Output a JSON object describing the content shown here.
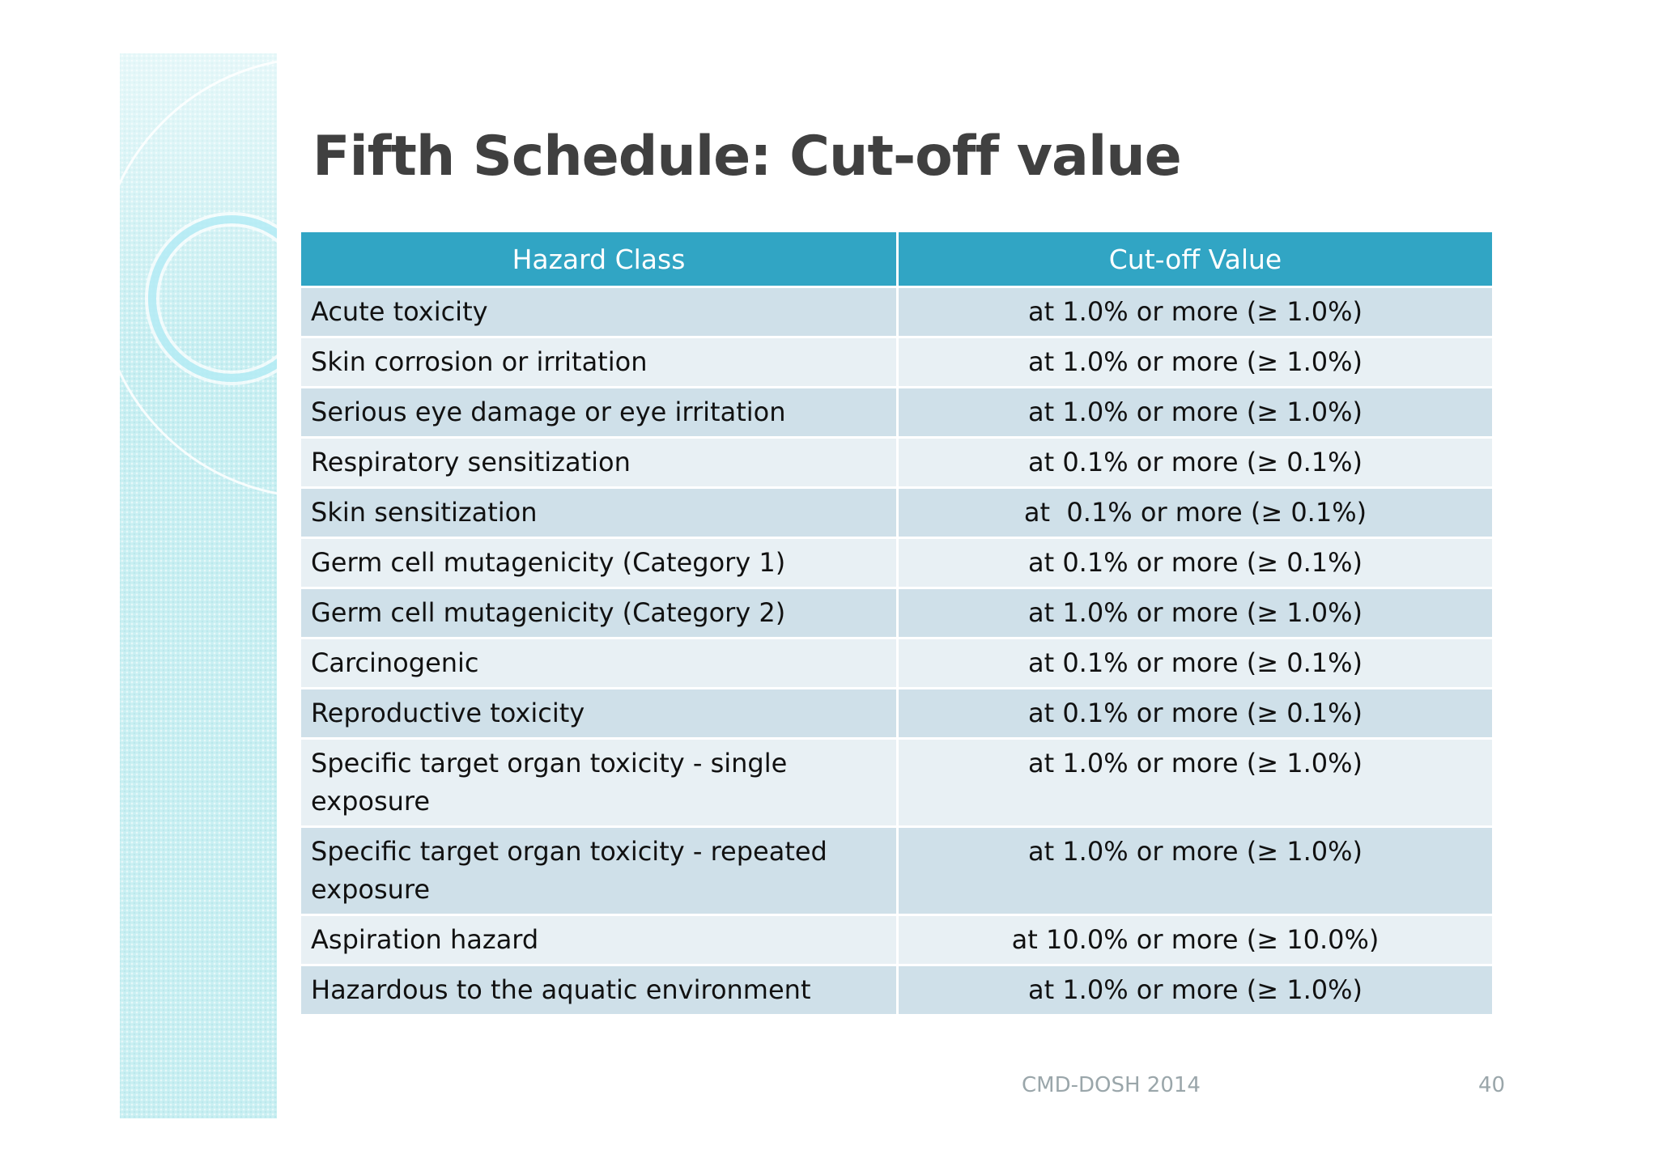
{
  "slide": {
    "title": "Fifth Schedule: Cut-off value"
  },
  "table": {
    "headers": [
      "Hazard Class",
      "Cut-off Value"
    ],
    "rows": [
      {
        "hazard": "Acute toxicity",
        "cutoff": "at 1.0% or more (≥ 1.0%)"
      },
      {
        "hazard": "Skin corrosion or irritation",
        "cutoff": "at 1.0% or more (≥ 1.0%)"
      },
      {
        "hazard": "Serious eye damage or eye irritation",
        "cutoff": "at 1.0% or more (≥ 1.0%)"
      },
      {
        "hazard": "Respiratory sensitization",
        "cutoff": "at 0.1% or more (≥ 0.1%)"
      },
      {
        "hazard": "Skin sensitization",
        "cutoff": "at  0.1% or more (≥ 0.1%)"
      },
      {
        "hazard": "Germ cell mutagenicity (Category 1)",
        "cutoff": "at 0.1% or more (≥ 0.1%)"
      },
      {
        "hazard": "Germ cell mutagenicity (Category 2)",
        "cutoff": "at 1.0% or more (≥ 1.0%)"
      },
      {
        "hazard": "Carcinogenic",
        "cutoff": "at 0.1% or more (≥ 0.1%)"
      },
      {
        "hazard": "Reproductive toxicity",
        "cutoff": "at 0.1% or more (≥ 0.1%)"
      },
      {
        "hazard": "Specific target organ toxicity - single exposure",
        "cutoff": "at 1.0% or more (≥ 1.0%)"
      },
      {
        "hazard": "Specific target organ toxicity - repeated exposure",
        "cutoff": "at 1.0% or more (≥ 1.0%)"
      },
      {
        "hazard": "Aspiration hazard",
        "cutoff": "at 10.0% or more (≥ 10.0%)"
      },
      {
        "hazard": "Hazardous to the aquatic environment",
        "cutoff": "at 1.0% or more (≥ 1.0%)"
      }
    ]
  },
  "footer": {
    "text": "CMD-DOSH 2014",
    "page_number": "40"
  },
  "colors": {
    "header_bg": "#31a5c4",
    "row_dark": "#cfe0e9",
    "row_light": "#e8f0f4",
    "title_text": "#404040",
    "side_strip": "#c9eff2"
  }
}
